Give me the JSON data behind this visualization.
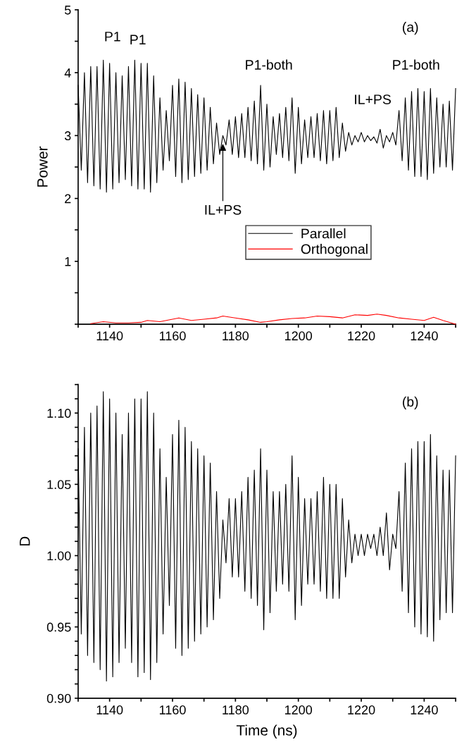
{
  "chart_data": [
    {
      "type": "line",
      "ylabel": "Power",
      "legend": "center",
      "line_style": "solid",
      "x": [
        1130,
        1131,
        1132,
        1133,
        1134,
        1135,
        1136,
        1137,
        1138,
        1139,
        1140,
        1141,
        1142,
        1143,
        1144,
        1145,
        1146,
        1147,
        1148,
        1149,
        1150,
        1151,
        1152,
        1153,
        1154,
        1155,
        1156,
        1157,
        1158,
        1159,
        1160,
        1161,
        1162,
        1163,
        1164,
        1165,
        1166,
        1167,
        1168,
        1169,
        1170,
        1171,
        1172,
        1173,
        1174,
        1175,
        1176,
        1177,
        1178,
        1179,
        1180,
        1181,
        1182,
        1183,
        1184,
        1185,
        1186,
        1187,
        1188,
        1189,
        1190,
        1191,
        1192,
        1193,
        1194,
        1195,
        1196,
        1197,
        1198,
        1199,
        1200,
        1201,
        1202,
        1203,
        1204,
        1205,
        1206,
        1207,
        1208,
        1209,
        1210,
        1211,
        1212,
        1213,
        1214,
        1215,
        1216,
        1217,
        1218,
        1219,
        1220,
        1221,
        1222,
        1223,
        1224,
        1225,
        1226,
        1227,
        1228,
        1229,
        1230,
        1231,
        1232,
        1233,
        1234,
        1235,
        1236,
        1237,
        1238,
        1239,
        1240,
        1241,
        1242,
        1243,
        1244,
        1245,
        1246,
        1247,
        1248,
        1249,
        1250
      ],
      "series": [
        {
          "name": "Parallel",
          "color": "#000000",
          "values": [
            3.8,
            2.45,
            4.0,
            2.25,
            4.1,
            2.2,
            4.1,
            2.15,
            4.2,
            2.1,
            4.15,
            2.15,
            4.0,
            2.25,
            3.95,
            2.3,
            4.1,
            2.2,
            4.2,
            2.15,
            4.15,
            2.15,
            4.15,
            2.1,
            3.95,
            2.25,
            3.6,
            2.45,
            3.4,
            2.6,
            3.8,
            2.35,
            3.9,
            2.25,
            3.85,
            2.3,
            3.75,
            2.35,
            3.65,
            2.4,
            3.6,
            2.45,
            3.45,
            2.55,
            3.2,
            2.7,
            3.0,
            2.85,
            3.25,
            2.7,
            3.3,
            2.65,
            3.35,
            2.65,
            3.45,
            2.6,
            3.55,
            2.55,
            3.8,
            2.45,
            3.5,
            2.5,
            3.3,
            2.7,
            3.35,
            2.65,
            3.45,
            2.6,
            3.6,
            2.4,
            3.45,
            2.55,
            3.25,
            2.65,
            3.3,
            2.65,
            3.35,
            2.6,
            3.4,
            2.55,
            3.4,
            2.6,
            3.45,
            2.65,
            3.2,
            2.75,
            3.05,
            2.85,
            3.0,
            2.9,
            3.05,
            2.9,
            3.0,
            2.92,
            2.98,
            2.88,
            3.1,
            2.8,
            3.0,
            2.9,
            3.05,
            2.85,
            3.4,
            2.6,
            3.6,
            2.45,
            3.7,
            2.35,
            3.75,
            2.35,
            3.7,
            2.3,
            3.75,
            2.4,
            3.6,
            2.5,
            3.5,
            2.5,
            3.55,
            2.45,
            3.75
          ]
        },
        {
          "name": "Orthogonal",
          "color": "#ff0000",
          "x": [
            1134,
            1138,
            1142,
            1146,
            1150,
            1152,
            1156,
            1160,
            1162,
            1166,
            1170,
            1174,
            1176,
            1180,
            1184,
            1188,
            1190,
            1194,
            1198,
            1202,
            1206,
            1210,
            1214,
            1218,
            1222,
            1225,
            1228,
            1232,
            1236,
            1240,
            1243,
            1246,
            1250
          ],
          "values": [
            0.01,
            0.04,
            0.02,
            0.02,
            0.03,
            0.06,
            0.04,
            0.08,
            0.1,
            0.06,
            0.08,
            0.1,
            0.13,
            0.1,
            0.07,
            0.03,
            0.04,
            0.07,
            0.09,
            0.1,
            0.13,
            0.12,
            0.1,
            0.15,
            0.14,
            0.16,
            0.14,
            0.1,
            0.08,
            0.06,
            0.11,
            0.06,
            0.0
          ]
        }
      ],
      "xlim": [
        1130,
        1250
      ],
      "xticks": [
        {
          "value": 1130,
          "label": null
        },
        1140,
        {
          "value": 1150,
          "label": null
        },
        1160,
        {
          "value": 1170,
          "label": null
        },
        1180,
        {
          "value": 1190,
          "label": null
        },
        1200,
        {
          "value": 1210,
          "label": null
        },
        1220,
        {
          "value": 1230,
          "label": null
        },
        1240,
        {
          "value": 1250,
          "label": null
        }
      ],
      "ylim": [
        0,
        5
      ],
      "yticks": [
        {
          "value": 0,
          "label": null
        },
        {
          "value": 0.5,
          "label": null
        },
        1,
        {
          "value": 1.5,
          "label": null
        },
        2,
        {
          "value": 2.5,
          "label": null
        },
        3,
        {
          "value": 3.5,
          "label": null
        },
        4,
        {
          "value": 4.5,
          "label": null
        },
        5
      ],
      "annotations": [
        "(a)",
        "P1",
        "P1",
        "P1-both",
        "P1-both",
        "IL+PS",
        {
          "text": "IL+PS",
          "x": 1176,
          "y": 2.9
        }
      ]
    },
    {
      "type": "line",
      "xlabel": "Time (ns)",
      "ylabel": "D",
      "line_style": "solid",
      "x": [
        1130,
        1131,
        1132,
        1133,
        1134,
        1135,
        1136,
        1137,
        1138,
        1139,
        1140,
        1141,
        1142,
        1143,
        1144,
        1145,
        1146,
        1147,
        1148,
        1149,
        1150,
        1151,
        1152,
        1153,
        1154,
        1155,
        1156,
        1157,
        1158,
        1159,
        1160,
        1161,
        1162,
        1163,
        1164,
        1165,
        1166,
        1167,
        1168,
        1169,
        1170,
        1171,
        1172,
        1173,
        1174,
        1175,
        1176,
        1177,
        1178,
        1179,
        1180,
        1181,
        1182,
        1183,
        1184,
        1185,
        1186,
        1187,
        1188,
        1189,
        1190,
        1191,
        1192,
        1193,
        1194,
        1195,
        1196,
        1197,
        1198,
        1199,
        1200,
        1201,
        1202,
        1203,
        1204,
        1205,
        1206,
        1207,
        1208,
        1209,
        1210,
        1211,
        1212,
        1213,
        1214,
        1215,
        1216,
        1217,
        1218,
        1219,
        1220,
        1221,
        1222,
        1223,
        1224,
        1225,
        1226,
        1227,
        1228,
        1229,
        1230,
        1231,
        1232,
        1233,
        1234,
        1235,
        1236,
        1237,
        1238,
        1239,
        1240,
        1241,
        1242,
        1243,
        1244,
        1245,
        1246,
        1247,
        1248,
        1249,
        1250
      ],
      "series": [
        {
          "color": "#000000",
          "values": [
            1.075,
            0.945,
            1.09,
            0.93,
            1.1,
            0.925,
            1.105,
            0.92,
            1.115,
            0.912,
            1.11,
            0.915,
            1.1,
            0.925,
            1.085,
            0.935,
            1.1,
            0.925,
            1.11,
            0.915,
            1.11,
            0.918,
            1.115,
            0.913,
            1.1,
            0.925,
            1.075,
            0.945,
            1.055,
            0.965,
            1.085,
            0.935,
            1.095,
            0.93,
            1.09,
            0.935,
            1.08,
            0.94,
            1.075,
            0.945,
            1.07,
            0.95,
            1.065,
            0.955,
            1.045,
            0.97,
            1.025,
            0.995,
            1.04,
            0.985,
            1.04,
            0.985,
            1.045,
            0.975,
            1.055,
            0.97,
            1.06,
            0.965,
            1.075,
            0.948,
            1.06,
            0.96,
            1.045,
            0.975,
            1.045,
            0.98,
            1.05,
            0.975,
            1.07,
            0.955,
            1.055,
            0.965,
            1.04,
            0.98,
            1.04,
            0.98,
            1.045,
            0.975,
            1.055,
            0.97,
            1.05,
            0.97,
            1.05,
            0.97,
            1.04,
            0.985,
            1.025,
            0.995,
            1.015,
            1.0,
            1.015,
            1.0,
            1.015,
            1.005,
            1.015,
            1.0,
            1.02,
            1.0,
            1.03,
            0.99,
            1.015,
            1.005,
            1.045,
            0.975,
            1.065,
            0.96,
            1.075,
            0.95,
            1.08,
            0.945,
            1.08,
            0.943,
            1.085,
            0.94,
            1.07,
            0.955,
            1.06,
            0.96,
            1.06,
            0.96,
            1.07
          ]
        }
      ],
      "xlim": [
        1130,
        1250
      ],
      "xticks": [
        {
          "value": 1130,
          "label": null
        },
        1140,
        {
          "value": 1150,
          "label": null
        },
        1160,
        {
          "value": 1170,
          "label": null
        },
        1180,
        {
          "value": 1190,
          "label": null
        },
        1200,
        {
          "value": 1210,
          "label": null
        },
        1220,
        {
          "value": 1230,
          "label": null
        },
        1240,
        {
          "value": 1250,
          "label": null
        }
      ],
      "ylim": [
        0.9,
        1.12
      ],
      "yticks": [
        {
          "value": 0.9,
          "label": "0.90"
        },
        {
          "value": 0.91,
          "label": null
        },
        {
          "value": 0.92,
          "label": null
        },
        {
          "value": 0.93,
          "label": null
        },
        {
          "value": 0.94,
          "label": null
        },
        {
          "value": 0.95,
          "label": "0.95"
        },
        {
          "value": 0.96,
          "label": null
        },
        {
          "value": 0.97,
          "label": null
        },
        {
          "value": 0.98,
          "label": null
        },
        {
          "value": 0.99,
          "label": null
        },
        {
          "value": 1.0,
          "label": "1.00"
        },
        {
          "value": 1.01,
          "label": null
        },
        {
          "value": 1.02,
          "label": null
        },
        {
          "value": 1.03,
          "label": null
        },
        {
          "value": 1.04,
          "label": null
        },
        {
          "value": 1.05,
          "label": "1.05"
        },
        {
          "value": 1.06,
          "label": null
        },
        {
          "value": 1.07,
          "label": null
        },
        {
          "value": 1.08,
          "label": null
        },
        {
          "value": 1.09,
          "label": null
        },
        {
          "value": 1.1,
          "label": "1.10"
        },
        {
          "value": 1.11,
          "label": null
        },
        {
          "value": 1.12,
          "label": null
        }
      ],
      "annotations": [
        "(b)"
      ]
    }
  ]
}
